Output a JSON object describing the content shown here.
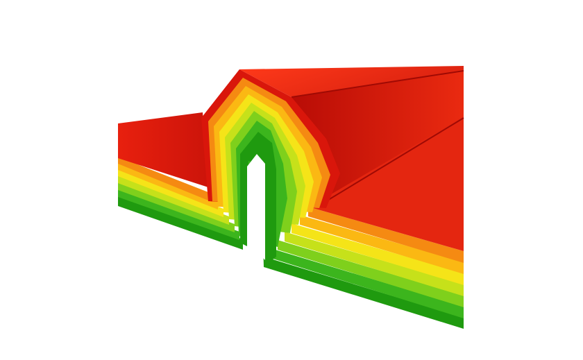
{
  "scene": {
    "subject": "house-energy-rating-layers",
    "bands": [
      {
        "name": "dark-green",
        "color": "#1f9a0f"
      },
      {
        "name": "green",
        "color": "#3cb51d"
      },
      {
        "name": "light-green",
        "color": "#7fd01c"
      },
      {
        "name": "yellow-green",
        "color": "#c6e11a"
      },
      {
        "name": "yellow",
        "color": "#f5e418"
      },
      {
        "name": "light-orange",
        "color": "#fbb813"
      },
      {
        "name": "orange",
        "color": "#f58a12"
      },
      {
        "name": "red",
        "color": "#e0200f"
      }
    ],
    "background": "#ffffff"
  }
}
